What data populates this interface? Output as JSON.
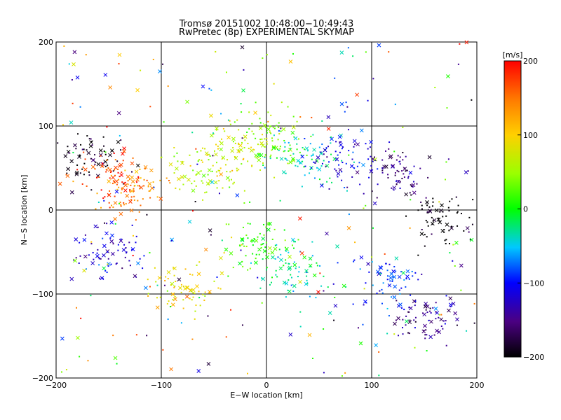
{
  "chart_data": {
    "type": "scatter",
    "title": "Tromsø 20151002 10:48:00−10:49:43",
    "subtitle": "RwPretec (8p) EXPERIMENTAL SKYMAP",
    "xlabel": "E−W location [km]",
    "ylabel": "N−S location [km]",
    "xlim": [
      -200,
      200
    ],
    "ylim": [
      -200,
      200
    ],
    "xticks": [
      -200,
      -100,
      0,
      100,
      200
    ],
    "yticks": [
      -200,
      -100,
      0,
      100,
      200
    ],
    "xtick_labels": [
      "−200",
      "−100",
      "0",
      "100",
      "200"
    ],
    "ytick_labels": [
      "−200",
      "−100",
      "0",
      "100",
      "200"
    ],
    "grid": true,
    "marker_styles": [
      "dot",
      "x"
    ],
    "colorbar": {
      "label": "[m/s]",
      "range": [
        -200,
        200
      ],
      "ticks": [
        -200,
        -100,
        0,
        100,
        200
      ],
      "tick_labels": [
        "−200",
        "−100",
        "0",
        "100",
        "200"
      ],
      "colormap": "rainbow"
    },
    "clusters": [
      {
        "x": -165,
        "y": 60,
        "v": -190
      },
      {
        "x": -145,
        "y": 40,
        "v": 175
      },
      {
        "x": -130,
        "y": 20,
        "v": 140
      },
      {
        "x": -60,
        "y": 45,
        "v": 60
      },
      {
        "x": -25,
        "y": 75,
        "v": 80
      },
      {
        "x": 5,
        "y": 85,
        "v": 40
      },
      {
        "x": 35,
        "y": 65,
        "v": -30
      },
      {
        "x": 80,
        "y": 60,
        "v": -110
      },
      {
        "x": 125,
        "y": 40,
        "v": -150
      },
      {
        "x": 165,
        "y": -10,
        "v": -200
      },
      {
        "x": -10,
        "y": -40,
        "v": 20
      },
      {
        "x": 25,
        "y": -70,
        "v": -30
      },
      {
        "x": -80,
        "y": -90,
        "v": 90
      },
      {
        "x": -150,
        "y": -50,
        "v": -120
      },
      {
        "x": 115,
        "y": -85,
        "v": -90
      },
      {
        "x": 150,
        "y": -130,
        "v": -140
      }
    ]
  }
}
